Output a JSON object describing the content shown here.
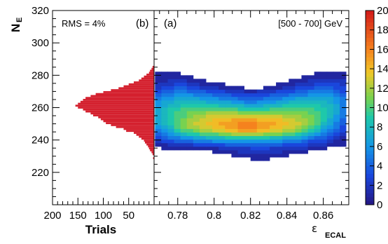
{
  "chart_data": [
    {
      "type": "heatmap",
      "panel_label": "(a)",
      "annotation": "[500 - 700] GeV",
      "ylabel": "N",
      "ylabel_sub": "E",
      "xlabel": "ε",
      "xlabel_sub": "ECAL",
      "xlim": [
        0.767,
        0.874
      ],
      "ylim": [
        200,
        320
      ],
      "x_ticks": [
        0.78,
        0.8,
        0.82,
        0.84,
        0.86
      ],
      "x_tick_labels": [
        "0.78",
        "0.8",
        "0.82",
        "0.84",
        "0.86"
      ],
      "y_ticks": [
        220,
        240,
        260,
        280,
        300,
        320
      ],
      "y_tick_labels": [
        "220",
        "240",
        "260",
        "280",
        "300",
        "320"
      ],
      "colorbar": {
        "min": 0,
        "max": 20,
        "ticks": [
          0,
          2,
          4,
          6,
          8,
          10,
          12,
          14,
          16,
          18,
          20
        ],
        "tick_labels": [
          "0",
          "2",
          "4",
          "6",
          "8",
          "10",
          "12",
          "14",
          "16",
          "18",
          "20"
        ]
      },
      "bins": {
        "x_min": 0.7675,
        "x_step": 0.0035,
        "y_min": 225,
        "y_step": 2.2,
        "count_x": 30,
        "count_y": 27,
        "counts": [
          [
            0,
            0,
            0,
            0,
            0,
            0,
            0,
            0,
            0,
            0,
            0,
            0,
            0,
            0,
            0,
            0,
            0,
            0,
            0,
            0,
            0,
            0,
            0,
            0,
            0,
            0,
            0,
            0,
            0,
            0
          ],
          [
            0,
            0,
            0,
            0,
            0,
            0,
            0,
            0,
            0,
            0,
            0,
            0,
            0,
            0,
            0,
            1,
            1,
            1,
            0,
            0,
            0,
            0,
            0,
            0,
            0,
            0,
            0,
            0,
            0,
            0
          ],
          [
            0,
            0,
            0,
            0,
            0,
            0,
            0,
            0,
            0,
            0,
            0,
            0,
            1,
            1,
            1,
            1,
            1,
            1,
            1,
            1,
            1,
            0,
            0,
            0,
            0,
            0,
            0,
            0,
            0,
            0
          ],
          [
            0,
            0,
            0,
            0,
            0,
            0,
            0,
            0,
            0,
            1,
            1,
            1,
            1,
            2,
            2,
            2,
            2,
            2,
            2,
            2,
            1,
            1,
            1,
            1,
            0,
            0,
            0,
            0,
            0,
            0
          ],
          [
            0,
            1,
            1,
            1,
            1,
            1,
            1,
            1,
            1,
            1,
            2,
            2,
            2,
            2,
            2,
            3,
            3,
            3,
            2,
            2,
            2,
            2,
            2,
            2,
            1,
            1,
            1,
            0,
            0,
            0
          ],
          [
            1,
            1,
            2,
            2,
            2,
            2,
            3,
            3,
            3,
            3,
            3,
            4,
            4,
            4,
            4,
            4,
            4,
            4,
            4,
            4,
            3,
            3,
            3,
            3,
            2,
            2,
            2,
            1,
            1,
            1
          ],
          [
            2,
            3,
            3,
            4,
            4,
            4,
            5,
            5,
            5,
            6,
            6,
            6,
            6,
            6,
            6,
            6,
            6,
            6,
            6,
            6,
            5,
            5,
            5,
            4,
            3,
            3,
            3,
            2,
            1,
            1
          ],
          [
            3,
            4,
            5,
            5,
            6,
            6,
            7,
            7,
            8,
            8,
            8,
            9,
            9,
            9,
            9,
            9,
            9,
            9,
            8,
            8,
            7,
            7,
            7,
            6,
            5,
            4,
            4,
            3,
            2,
            1
          ],
          [
            4,
            5,
            6,
            7,
            8,
            9,
            9,
            10,
            10,
            10,
            11,
            11,
            12,
            12,
            12,
            12,
            12,
            11,
            11,
            11,
            10,
            10,
            9,
            8,
            7,
            6,
            5,
            4,
            3,
            2
          ],
          [
            5,
            6,
            7,
            9,
            10,
            10,
            11,
            12,
            12,
            13,
            13,
            14,
            14,
            15,
            15,
            15,
            14,
            14,
            13,
            13,
            12,
            12,
            11,
            10,
            9,
            8,
            6,
            5,
            4,
            3
          ],
          [
            6,
            7,
            8,
            10,
            11,
            12,
            12,
            13,
            13,
            14,
            14,
            15,
            15,
            16,
            16,
            16,
            15,
            15,
            14,
            14,
            13,
            13,
            12,
            11,
            10,
            9,
            7,
            6,
            5,
            3
          ],
          [
            7,
            8,
            9,
            10,
            11,
            12,
            13,
            13,
            14,
            14,
            15,
            15,
            15,
            16,
            16,
            16,
            15,
            15,
            15,
            14,
            14,
            13,
            13,
            12,
            11,
            10,
            8,
            7,
            5,
            4
          ],
          [
            7,
            8,
            9,
            10,
            11,
            12,
            12,
            13,
            13,
            14,
            14,
            14,
            15,
            15,
            15,
            15,
            14,
            14,
            14,
            14,
            13,
            13,
            12,
            12,
            11,
            10,
            9,
            7,
            6,
            4
          ],
          [
            7,
            8,
            9,
            10,
            10,
            11,
            12,
            12,
            13,
            13,
            13,
            13,
            13,
            13,
            13,
            13,
            13,
            13,
            13,
            13,
            12,
            12,
            12,
            11,
            11,
            10,
            9,
            8,
            6,
            5
          ],
          [
            7,
            8,
            9,
            10,
            10,
            11,
            11,
            11,
            12,
            12,
            12,
            12,
            12,
            11,
            11,
            11,
            11,
            11,
            11,
            11,
            11,
            11,
            11,
            11,
            10,
            10,
            9,
            8,
            7,
            5
          ],
          [
            7,
            8,
            9,
            9,
            10,
            10,
            10,
            10,
            10,
            10,
            10,
            10,
            10,
            9,
            9,
            9,
            9,
            9,
            10,
            10,
            10,
            10,
            10,
            10,
            10,
            9,
            9,
            8,
            7,
            5
          ],
          [
            6,
            7,
            8,
            8,
            9,
            9,
            9,
            9,
            9,
            9,
            8,
            8,
            8,
            8,
            7,
            7,
            7,
            8,
            8,
            8,
            9,
            9,
            9,
            9,
            9,
            9,
            8,
            8,
            7,
            5
          ],
          [
            6,
            7,
            7,
            8,
            8,
            8,
            8,
            8,
            7,
            7,
            7,
            7,
            6,
            6,
            5,
            5,
            6,
            6,
            6,
            7,
            7,
            8,
            8,
            8,
            8,
            8,
            8,
            7,
            6,
            5
          ],
          [
            5,
            6,
            6,
            7,
            7,
            7,
            7,
            6,
            6,
            6,
            5,
            5,
            5,
            4,
            4,
            4,
            4,
            5,
            5,
            5,
            6,
            6,
            7,
            7,
            7,
            7,
            7,
            7,
            6,
            5
          ],
          [
            4,
            5,
            5,
            6,
            6,
            6,
            5,
            5,
            5,
            4,
            4,
            4,
            3,
            3,
            3,
            3,
            3,
            3,
            4,
            4,
            4,
            5,
            5,
            5,
            6,
            6,
            6,
            6,
            5,
            4
          ],
          [
            3,
            4,
            4,
            5,
            5,
            4,
            4,
            4,
            3,
            3,
            3,
            2,
            2,
            2,
            1,
            1,
            2,
            2,
            2,
            3,
            3,
            3,
            4,
            4,
            5,
            5,
            5,
            5,
            4,
            3
          ],
          [
            2,
            3,
            3,
            4,
            4,
            3,
            3,
            2,
            2,
            2,
            1,
            1,
            1,
            1,
            0,
            0,
            0,
            1,
            1,
            1,
            2,
            2,
            3,
            3,
            3,
            4,
            4,
            4,
            3,
            3
          ],
          [
            2,
            2,
            2,
            3,
            3,
            2,
            2,
            1,
            1,
            1,
            1,
            0,
            0,
            0,
            0,
            0,
            0,
            0,
            0,
            1,
            1,
            1,
            2,
            2,
            2,
            3,
            3,
            3,
            3,
            2
          ],
          [
            1,
            1,
            2,
            2,
            2,
            1,
            1,
            1,
            0,
            0,
            0,
            0,
            0,
            0,
            0,
            0,
            0,
            0,
            0,
            0,
            0,
            1,
            1,
            1,
            2,
            2,
            2,
            2,
            2,
            2
          ],
          [
            1,
            1,
            1,
            1,
            1,
            1,
            0,
            0,
            0,
            0,
            0,
            0,
            0,
            0,
            0,
            0,
            0,
            0,
            0,
            0,
            0,
            0,
            0,
            1,
            1,
            1,
            1,
            1,
            1,
            1
          ],
          [
            1,
            1,
            1,
            1,
            0,
            0,
            0,
            0,
            0,
            0,
            0,
            0,
            0,
            0,
            0,
            0,
            0,
            0,
            0,
            0,
            0,
            0,
            0,
            0,
            0,
            1,
            1,
            1,
            1,
            1
          ],
          [
            0,
            0,
            0,
            0,
            0,
            0,
            0,
            0,
            0,
            0,
            0,
            0,
            0,
            0,
            0,
            0,
            0,
            0,
            0,
            0,
            0,
            0,
            0,
            0,
            0,
            0,
            0,
            0,
            0,
            0
          ]
        ]
      }
    },
    {
      "type": "bar",
      "orientation": "horizontal",
      "panel_label": "(b)",
      "annotation": "RMS = 4%",
      "xlabel": "Trials",
      "x_reversed": true,
      "xlim": [
        200,
        0
      ],
      "ylim": [
        200,
        320
      ],
      "x_ticks": [
        200,
        150,
        100,
        50
      ],
      "x_tick_labels": [
        "200",
        "150",
        "100",
        "50"
      ],
      "bin_width": 1.2,
      "color": "#d4202e",
      "bins_y": [
        228.8,
        231.2,
        232.4,
        233.6,
        234.8,
        236.0,
        237.2,
        238.4,
        239.6,
        240.8,
        242.0,
        243.2,
        244.4,
        245.6,
        246.8,
        248.0,
        249.2,
        250.4,
        251.6,
        252.8,
        254.0,
        255.2,
        256.4,
        257.6,
        258.8,
        260.0,
        261.2,
        262.4,
        263.6,
        264.8,
        266.0,
        267.2,
        268.4,
        269.6,
        270.8,
        272.0,
        273.2,
        274.4,
        275.6,
        276.8,
        278.0,
        279.2,
        280.4,
        281.6,
        282.8,
        284.0,
        285.2
      ],
      "values": [
        2,
        3,
        5,
        8,
        10,
        12,
        15,
        18,
        20,
        25,
        30,
        35,
        40,
        55,
        60,
        75,
        85,
        95,
        100,
        105,
        110,
        120,
        125,
        135,
        140,
        150,
        155,
        150,
        145,
        140,
        135,
        125,
        115,
        100,
        85,
        70,
        60,
        50,
        40,
        30,
        25,
        20,
        15,
        10,
        8,
        5,
        3
      ]
    }
  ]
}
